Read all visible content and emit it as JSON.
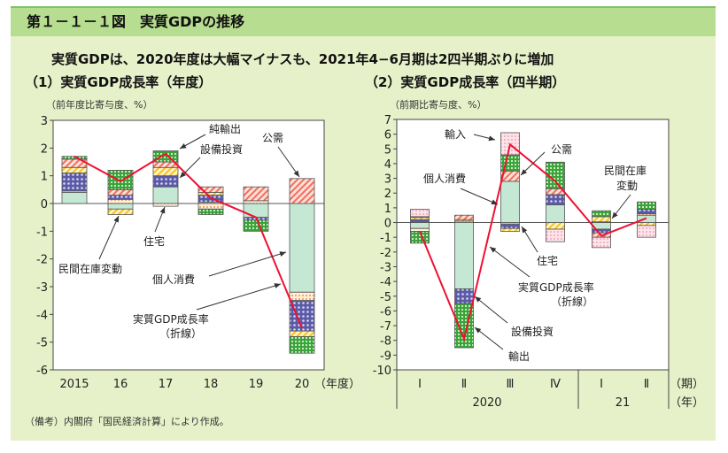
{
  "header": {
    "title": "第１－１－１図　実質GDPの推移"
  },
  "headline": "実質GDPは、2020年度は大幅マイナスも、2021年4−6月期は2四半期ぶりに増加",
  "note": "（備考）内閣府「国民経済計算」により作成。",
  "colors": {
    "frame": "#7cc46a",
    "header_bg": "#b7dd90",
    "body_bg": "#e7f1c9",
    "line": "#ee1133",
    "consumption": "#c5e8d4",
    "pub": "#f07060",
    "housing": "#f5c020",
    "capex": "#5050a0",
    "inventory": "#f09040",
    "netexp": "#3aa43a",
    "imports": "#f090a8"
  },
  "chart_data": [
    {
      "type": "bar",
      "stacked": true,
      "title": "（1）実質GDP成長率（年度）",
      "ylabel": "（前年度比寄与度、%）",
      "xlabel": "（年度）",
      "ylim": [
        -6,
        3
      ],
      "yticks": [
        "3",
        "2",
        "1",
        "0",
        "-1",
        "-2",
        "-3",
        "-4",
        "-5",
        "-6"
      ],
      "categories": [
        "2015",
        "16",
        "17",
        "18",
        "19",
        "20"
      ],
      "series": [
        {
          "name": "個人消費",
          "key": "consumption",
          "values": [
            0.4,
            -0.2,
            0.6,
            0.05,
            -0.5,
            -3.2
          ]
        },
        {
          "name": "民間在庫変動",
          "key": "inventory",
          "values": [
            0.05,
            0.15,
            -0.1,
            -0.2,
            0.1,
            -0.3
          ]
        },
        {
          "name": "設備投資",
          "key": "capex",
          "values": [
            0.65,
            0.15,
            0.4,
            0.25,
            -0.1,
            -1.1
          ]
        },
        {
          "name": "住宅",
          "key": "housing",
          "values": [
            0.2,
            -0.2,
            0.3,
            0.1,
            0,
            -0.2
          ]
        },
        {
          "name": "公需",
          "key": "pub",
          "values": [
            0.3,
            0.2,
            0.2,
            0.2,
            0.5,
            0.9
          ]
        },
        {
          "name": "純輸出",
          "key": "netexp",
          "values": [
            0.1,
            0.7,
            0.4,
            -0.2,
            -0.4,
            -0.6
          ]
        }
      ],
      "line": {
        "name": "実質GDP成長率（折線）",
        "values": [
          1.7,
          0.8,
          1.8,
          0.2,
          -0.5,
          -4.5
        ]
      }
    },
    {
      "type": "bar",
      "stacked": true,
      "title": "（2）実質GDP成長率（四半期）",
      "ylabel": "（前期比寄与度、%）",
      "xlabel": "（期）",
      "year_label": "（年）",
      "ylim": [
        -10,
        7
      ],
      "yticks": [
        "7",
        "6",
        "5",
        "4",
        "3",
        "2",
        "1",
        "0",
        "-1",
        "-2",
        "-3",
        "-4",
        "-5",
        "-6",
        "-7",
        "-8",
        "-9",
        "-10"
      ],
      "categories": [
        "Ⅰ",
        "Ⅱ",
        "Ⅲ",
        "Ⅳ",
        "Ⅰ",
        "Ⅱ"
      ],
      "years": [
        "2020",
        "21"
      ],
      "series": [
        {
          "name": "個人消費",
          "key": "consumption",
          "values": [
            -0.4,
            -4.5,
            2.8,
            1.2,
            -0.45,
            0.5
          ]
        },
        {
          "name": "民間在庫変動",
          "key": "inventory",
          "values": [
            -0.2,
            0.1,
            -0.1,
            0,
            0.05,
            0.1
          ]
        },
        {
          "name": "設備投資",
          "key": "capex",
          "values": [
            0.2,
            -1.0,
            -0.3,
            0.7,
            -0.25,
            0.3
          ]
        },
        {
          "name": "住宅",
          "key": "housing",
          "values": [
            0.15,
            0.1,
            -0.2,
            -0.45,
            0.35,
            -0.2
          ]
        },
        {
          "name": "公需",
          "key": "pub",
          "values": [
            0.05,
            0.3,
            0.7,
            0.4,
            -0.3,
            0
          ]
        },
        {
          "name": "輸出",
          "key": "netexp",
          "values": [
            -0.8,
            -3.0,
            1.1,
            1.8,
            0.4,
            0.5
          ]
        },
        {
          "name": "輸入",
          "key": "imports",
          "values": [
            0.5,
            0,
            1.5,
            -0.85,
            -0.7,
            -0.8
          ]
        }
      ],
      "line": {
        "name": "実質GDP成長率（折線）",
        "values": [
          -0.6,
          -7.9,
          5.3,
          2.8,
          -0.9,
          0.3
        ]
      }
    }
  ],
  "annotations": {
    "left": [
      "純輸出",
      "設備投資",
      "公需",
      "住宅",
      "民間在庫変動",
      "個人消費",
      "実質GDP成長率",
      "（折線）"
    ],
    "right": [
      "輸入",
      "公需",
      "個人消費",
      "民間在庫",
      "変動",
      "住宅",
      "実質GDP成長率",
      "（折線）",
      "設備投資",
      "輸出"
    ]
  }
}
